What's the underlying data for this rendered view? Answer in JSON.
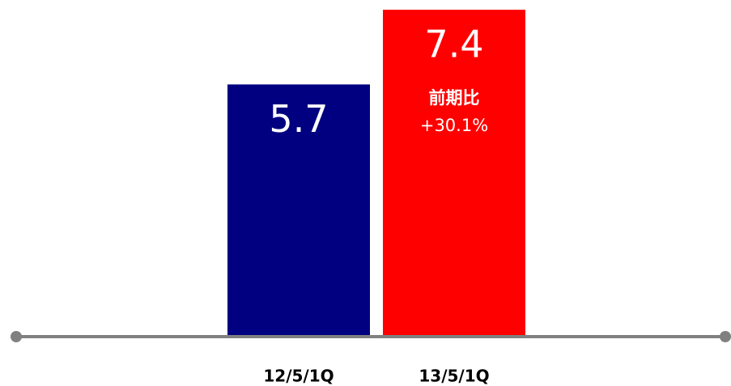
{
  "chart_data": {
    "type": "bar",
    "categories": [
      "12/5/1Q",
      "13/5/1Q"
    ],
    "values": [
      5.7,
      7.4
    ],
    "colors": [
      "#000080",
      "#ff0000"
    ],
    "annotation": {
      "title": "前期比",
      "text": "+30.1%"
    }
  }
}
